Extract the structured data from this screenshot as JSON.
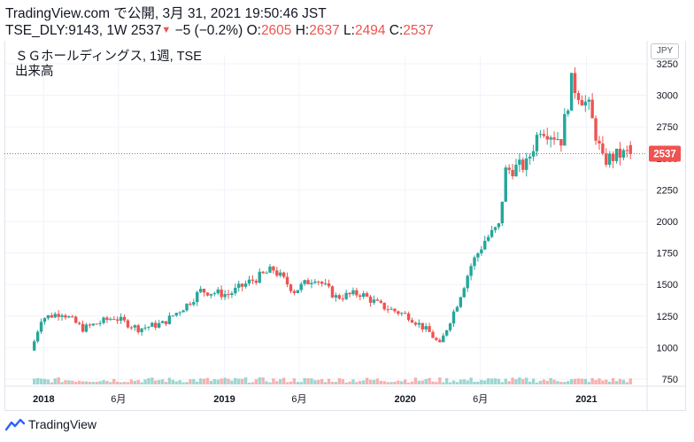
{
  "header": {
    "line1": "TradingView.com で公開, 3月 31, 2021 19:50:46 JST",
    "symbol": "TSE_DLY:9143, 1W",
    "last": "2537",
    "change": "−5 (−0.2%)",
    "o_label": "O:",
    "o_value": "2605",
    "h_label": "H:",
    "h_value": "2637",
    "l_label": "L:",
    "l_value": "2494",
    "c_label": "C:",
    "c_value": "2537"
  },
  "legend": {
    "title": "ＳＧホールディングス, 1週, TSE",
    "volume": "出来高"
  },
  "currency": "JPY",
  "last_price_label": "2537",
  "footer": {
    "brand": "TradingView"
  },
  "colors": {
    "up": "#26a69a",
    "down": "#ef5350",
    "grid": "#f0f3fa"
  },
  "chart_data": {
    "type": "candlestick",
    "title": "ＳＧホールディングス, 1週, TSE",
    "ylim": [
      700,
      3350
    ],
    "yticks": [
      750,
      1000,
      1250,
      1500,
      1750,
      2000,
      2250,
      2500,
      2750,
      3000,
      3250
    ],
    "xticks": [
      {
        "label": "2018",
        "date": "2018-01"
      },
      {
        "label": "6月",
        "date": "2018-06"
      },
      {
        "label": "2019",
        "date": "2019-01"
      },
      {
        "label": "6月",
        "date": "2019-06"
      },
      {
        "label": "2020",
        "date": "2020-01"
      },
      {
        "label": "6月",
        "date": "2020-06"
      },
      {
        "label": "2021",
        "date": "2021-01"
      }
    ],
    "xrange": [
      "2017-12-01",
      "2021-04-30"
    ],
    "last_price": 2537,
    "series_keyframes": [
      {
        "date": "2017-12-13",
        "close": 1050
      },
      {
        "date": "2017-12-27",
        "close": 1230
      },
      {
        "date": "2018-02-07",
        "close": 1280
      },
      {
        "date": "2018-03-21",
        "close": 1150
      },
      {
        "date": "2018-05-23",
        "close": 1240
      },
      {
        "date": "2018-07-11",
        "close": 1150
      },
      {
        "date": "2018-08-29",
        "close": 1190
      },
      {
        "date": "2018-10-17",
        "close": 1340
      },
      {
        "date": "2018-11-14",
        "close": 1450
      },
      {
        "date": "2019-01-09",
        "close": 1420
      },
      {
        "date": "2019-02-20",
        "close": 1520
      },
      {
        "date": "2019-04-10",
        "close": 1620
      },
      {
        "date": "2019-05-22",
        "close": 1450
      },
      {
        "date": "2019-07-03",
        "close": 1560
      },
      {
        "date": "2019-08-14",
        "close": 1400
      },
      {
        "date": "2019-10-02",
        "close": 1430
      },
      {
        "date": "2019-11-13",
        "close": 1330
      },
      {
        "date": "2020-01-08",
        "close": 1250
      },
      {
        "date": "2020-02-19",
        "close": 1120
      },
      {
        "date": "2020-03-11",
        "close": 1020
      },
      {
        "date": "2020-04-15",
        "close": 1350
      },
      {
        "date": "2020-05-13",
        "close": 1650
      },
      {
        "date": "2020-06-10",
        "close": 1850
      },
      {
        "date": "2020-07-08",
        "close": 1960
      },
      {
        "date": "2020-07-22",
        "close": 2400
      },
      {
        "date": "2020-09-02",
        "close": 2450
      },
      {
        "date": "2020-09-30",
        "close": 2750
      },
      {
        "date": "2020-11-11",
        "close": 2650
      },
      {
        "date": "2020-12-02",
        "close": 3100
      },
      {
        "date": "2021-01-06",
        "close": 2900
      },
      {
        "date": "2021-02-03",
        "close": 2480
      },
      {
        "date": "2021-03-10",
        "close": 2530
      },
      {
        "date": "2021-03-31",
        "close": 2537
      }
    ]
  }
}
